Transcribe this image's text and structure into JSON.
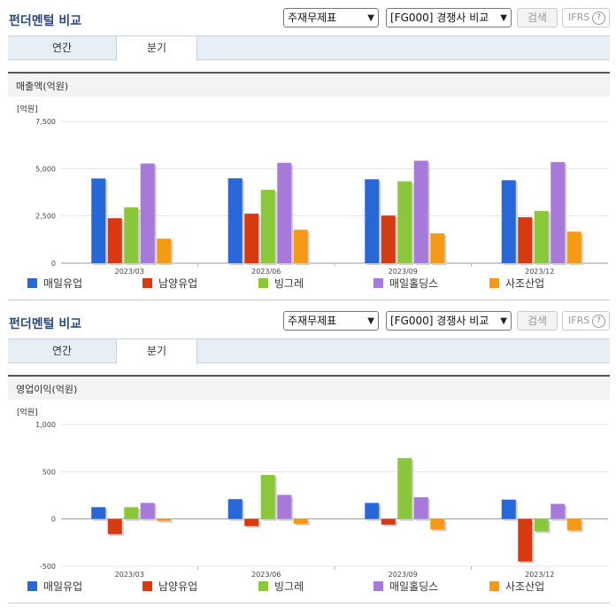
{
  "controls": {
    "title": "펀더멘털 비교",
    "statement_select": "주재무제표",
    "compare_select": "[FG000] 경쟁사 비교",
    "search_label": "검색",
    "ifrs_label": "IFRS",
    "help_glyph": "?"
  },
  "tabs": [
    "연간",
    "분기"
  ],
  "active_tab": 1,
  "series_colors": [
    "#2867d8",
    "#d53a10",
    "#8bc73a",
    "#a77ad9",
    "#f59a16"
  ],
  "sections": [
    {
      "subtitle": "매출액(억원)",
      "chart_data": {
        "type": "bar",
        "unit_label": "[억원]",
        "categories": [
          "2023/03",
          "2023/06",
          "2023/09",
          "2023/12"
        ],
        "ylim": [
          0,
          7500
        ],
        "yticks": [
          0,
          2500,
          5000,
          7500
        ],
        "ytick_labels": [
          "0",
          "2,500",
          "5,000",
          "7,500"
        ],
        "grid": true,
        "legend": "bottom",
        "series": [
          {
            "name": "매일유업",
            "values": [
              4480,
              4490,
              4440,
              4390
            ]
          },
          {
            "name": "남양유업",
            "values": [
              2380,
              2620,
              2520,
              2430
            ]
          },
          {
            "name": "빙그레",
            "values": [
              2950,
              3880,
              4330,
              2760
            ]
          },
          {
            "name": "매일홀딩스",
            "values": [
              5270,
              5310,
              5420,
              5350
            ]
          },
          {
            "name": "사조산업",
            "values": [
              1300,
              1770,
              1580,
              1670
            ]
          }
        ]
      }
    },
    {
      "subtitle": "영업이익(억원)",
      "chart_data": {
        "type": "bar",
        "unit_label": "[억원]",
        "categories": [
          "2023/03",
          "2023/06",
          "2023/09",
          "2023/12"
        ],
        "ylim": [
          -500,
          1000
        ],
        "yticks": [
          -500,
          0,
          500,
          1000
        ],
        "ytick_labels": [
          "-500",
          "0",
          "500",
          "1,000"
        ],
        "grid": true,
        "legend": "bottom",
        "series": [
          {
            "name": "매일유업",
            "values": [
              125,
              210,
              170,
              205
            ]
          },
          {
            "name": "남양유업",
            "values": [
              -160,
              -75,
              -60,
              -450
            ]
          },
          {
            "name": "빙그레",
            "values": [
              125,
              465,
              645,
              -130
            ]
          },
          {
            "name": "매일홀딩스",
            "values": [
              170,
              255,
              230,
              160
            ]
          },
          {
            "name": "사조산업",
            "values": [
              -20,
              -50,
              -110,
              -120
            ]
          }
        ]
      }
    }
  ]
}
